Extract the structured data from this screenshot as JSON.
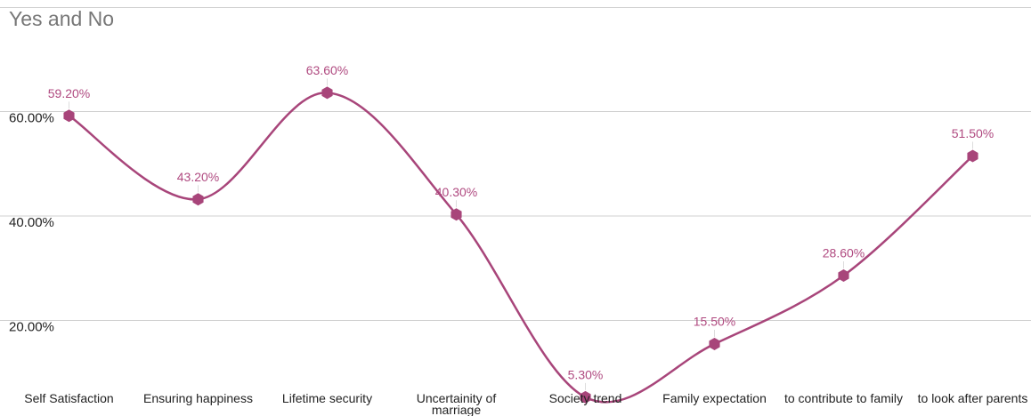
{
  "chart_data": {
    "type": "line",
    "title": "Yes and No",
    "categories": [
      "Self Satisfaction",
      "Ensuring happiness",
      "Lifetime security",
      "Uncertainity of marriage",
      "Society trend",
      "Family expectation",
      "to contribute to family",
      "to look after parents"
    ],
    "series": [
      {
        "color": "#a8457a",
        "values": [
          59.2,
          43.2,
          63.6,
          40.3,
          5.3,
          15.5,
          28.6,
          51.5
        ],
        "value_labels": [
          "59.20%",
          "43.20%",
          "63.60%",
          "40.30%",
          "5.30%",
          "15.50%",
          "28.60%",
          "51.50%"
        ]
      }
    ],
    "ylim": [
      0,
      80
    ],
    "yticks": [
      {
        "value": 20,
        "label": "20.00%"
      },
      {
        "value": 40,
        "label": "40.00%"
      },
      {
        "value": 60,
        "label": "60.00%"
      }
    ],
    "grid": true,
    "smooth": true
  }
}
